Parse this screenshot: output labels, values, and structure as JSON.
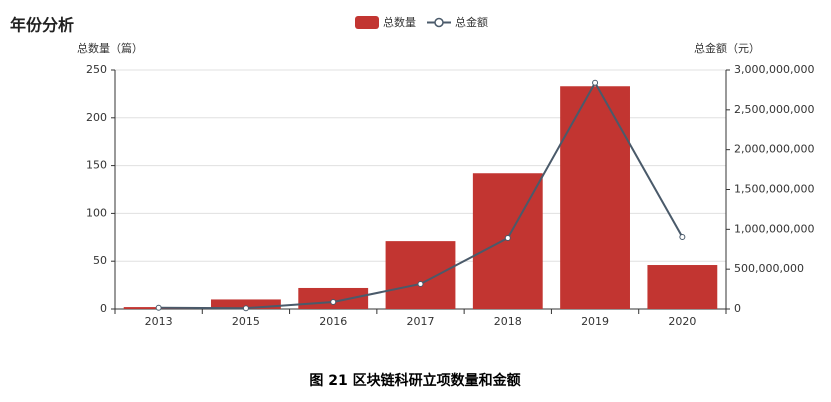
{
  "title": "年份分析",
  "chart_data": {
    "type": "bar",
    "caption": "图 21 区块链科研立项数量和金额",
    "ylabel": "总数量（篇）",
    "y2label": "总金额（元）",
    "categories": [
      "2013",
      "2015",
      "2016",
      "2017",
      "2018",
      "2019",
      "2020"
    ],
    "series": [
      {
        "name": "总数量",
        "color": "#c23531",
        "values": [
          2,
          10,
          22,
          71,
          142,
          233,
          46
        ]
      },
      {
        "name": "总金额",
        "color": "#4a5a6a",
        "type": "line",
        "axis": "y2",
        "values": [
          15000000,
          10000000,
          88000000,
          314000000,
          891000000,
          2840000000,
          904000000
        ]
      }
    ],
    "ylim": [
      0,
      250
    ],
    "yticks": [
      0,
      50,
      100,
      150,
      200,
      250
    ],
    "y2lim": [
      0,
      3000000000
    ],
    "y2ticks": [
      0,
      {
        "value": 500000000,
        "label": "500,000,000"
      },
      {
        "value": 1000000000,
        "label": "1,000,000,000"
      },
      {
        "value": 1500000000,
        "label": "1,500,000,000"
      },
      {
        "value": 2000000000,
        "label": "2,000,000,000"
      },
      {
        "value": 2500000000,
        "label": "2,500,000,000"
      },
      {
        "value": 3000000000,
        "label": "3,000,000,000"
      }
    ],
    "grid": true,
    "legend": "top"
  }
}
